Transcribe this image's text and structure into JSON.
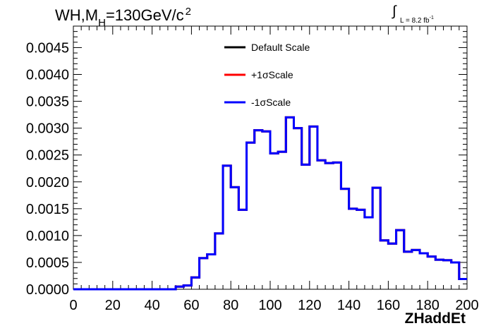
{
  "title": {
    "main": "WH,M",
    "sub": "H",
    "rest": "=130GeV/c",
    "sup": "2"
  },
  "lumi": {
    "symbol": "∫",
    "text": "L = 8.2 fb",
    "sup": "-1"
  },
  "chart_data": {
    "type": "histogram",
    "xlabel": "ZHaddEt",
    "ylabel": "",
    "xlim": [
      0,
      200
    ],
    "ylim": [
      0,
      0.0049
    ],
    "x_ticks": [
      0,
      20,
      40,
      60,
      80,
      100,
      120,
      140,
      160,
      180,
      200
    ],
    "y_ticks": [
      "0.0000",
      "0.0005",
      "0.0010",
      "0.0015",
      "0.0020",
      "0.0025",
      "0.0030",
      "0.0035",
      "0.0040",
      "0.0045"
    ],
    "bin_edges": [
      0,
      4,
      8,
      12,
      16,
      20,
      24,
      28,
      32,
      36,
      40,
      44,
      48,
      52,
      56,
      60,
      64,
      68,
      72,
      76,
      80,
      84,
      88,
      92,
      96,
      100,
      104,
      108,
      112,
      116,
      120,
      124,
      128,
      132,
      136,
      140,
      144,
      148,
      152,
      156,
      160,
      164,
      168,
      172,
      176,
      180,
      184,
      188,
      192,
      196,
      200
    ],
    "series": [
      {
        "name": "Default Scale",
        "color": "#000000",
        "values": [
          0,
          0,
          0,
          0,
          0,
          0,
          0,
          0,
          0,
          0,
          0,
          0,
          0,
          5e-05,
          7e-05,
          0.00022,
          0.00058,
          0.00065,
          0.00104,
          0.0023,
          0.0019,
          0.00148,
          0.00273,
          0.00296,
          0.00294,
          0.00253,
          0.00256,
          0.0032,
          0.003,
          0.00232,
          0.00303,
          0.0024,
          0.00235,
          0.00236,
          0.00187,
          0.0015,
          0.00148,
          0.00134,
          0.00189,
          0.00091,
          0.00085,
          0.0011,
          0.0007,
          0.00073,
          0.00067,
          0.00061,
          0.00055,
          0.00054,
          0.0005,
          0.00019
        ]
      },
      {
        "name": "+1σScale",
        "color": "#ff0000",
        "values": [
          0,
          0,
          0,
          0,
          0,
          0,
          0,
          0,
          0,
          0,
          0,
          0,
          0,
          5e-05,
          7e-05,
          0.00022,
          0.00058,
          0.00065,
          0.00104,
          0.0023,
          0.0019,
          0.00148,
          0.00273,
          0.00296,
          0.00294,
          0.00253,
          0.00256,
          0.0032,
          0.003,
          0.00232,
          0.00303,
          0.0024,
          0.00235,
          0.00236,
          0.00187,
          0.0015,
          0.00148,
          0.00134,
          0.00189,
          0.00091,
          0.00085,
          0.0011,
          0.0007,
          0.00073,
          0.00067,
          0.00061,
          0.00055,
          0.00054,
          0.0005,
          0.00019
        ]
      },
      {
        "name": "-1σScale",
        "color": "#0000ff",
        "values": [
          0,
          0,
          0,
          0,
          0,
          0,
          0,
          0,
          0,
          0,
          0,
          0,
          0,
          5e-05,
          7e-05,
          0.00022,
          0.00058,
          0.00065,
          0.00104,
          0.0023,
          0.0019,
          0.00148,
          0.00273,
          0.00296,
          0.00294,
          0.00253,
          0.00256,
          0.0032,
          0.003,
          0.00232,
          0.00303,
          0.0024,
          0.00235,
          0.00236,
          0.00187,
          0.0015,
          0.00148,
          0.00134,
          0.00189,
          0.00091,
          0.00085,
          0.0011,
          0.0007,
          0.00073,
          0.00067,
          0.00061,
          0.00055,
          0.00054,
          0.0005,
          0.00019
        ]
      }
    ],
    "legend_position": "top-center"
  }
}
